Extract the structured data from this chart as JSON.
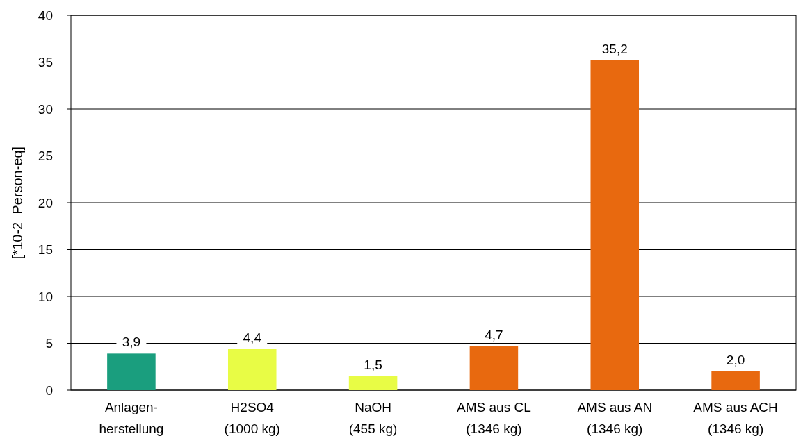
{
  "chart_data": {
    "type": "bar",
    "ylabel": "[*10-2  Person-eq]",
    "categories": [
      "Anlagen-\nherstellung",
      "H2SO4\n(1000 kg)",
      "NaOH\n(455 kg)",
      "AMS aus CL\n(1346 kg)",
      "AMS aus AN\n(1346 kg)",
      "AMS aus ACH\n(1346 kg)"
    ],
    "values": [
      3.9,
      4.4,
      1.5,
      4.7,
      35.2,
      2.0
    ],
    "colors": [
      "#1a9e7e",
      "#e8fc45",
      "#e8fc45",
      "#e8690f",
      "#e8690f",
      "#e8690f"
    ],
    "value_labels": [
      "3,9",
      "4,4",
      "1,5",
      "4,7",
      "35,2",
      "2,0"
    ],
    "ylim": [
      0,
      40
    ],
    "yticks": [
      0,
      5,
      10,
      15,
      20,
      25,
      30,
      35,
      40
    ],
    "grid": "y"
  }
}
